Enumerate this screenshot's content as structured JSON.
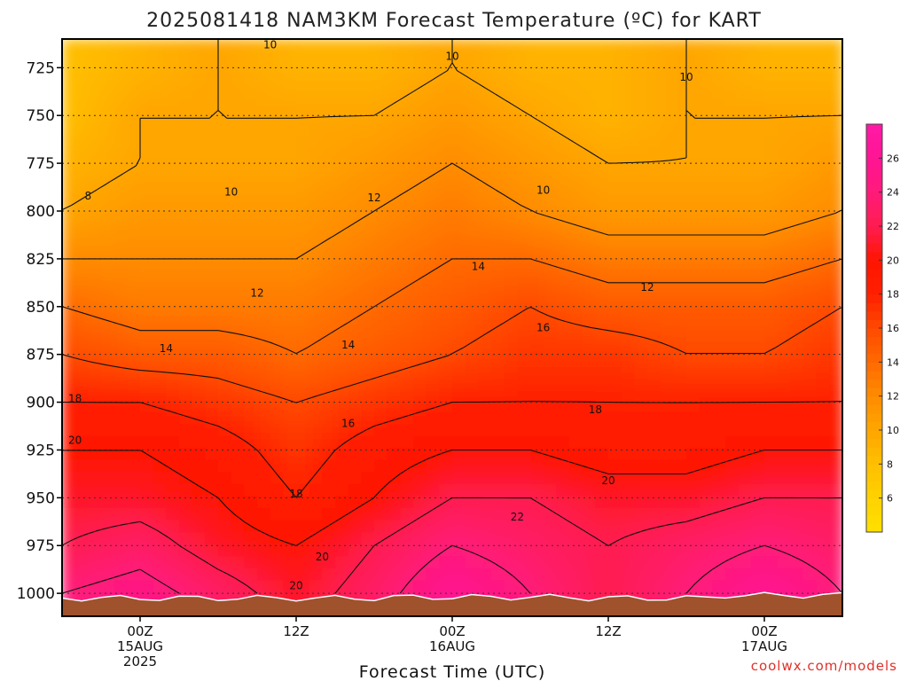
{
  "chart_data": {
    "type": "heatmap",
    "title": "2025081418 NAM3KM Forecast Temperature (ºC) for KART",
    "xlabel": "Forecast Time (UTC)",
    "ylabel": "",
    "y_axis": "pressure (hPa), inverted",
    "ylim": [
      1012,
      710
    ],
    "y_ticks": [
      725,
      750,
      775,
      800,
      825,
      850,
      875,
      900,
      925,
      950,
      975,
      1000
    ],
    "x_ticks": [
      {
        "line1": "00Z",
        "line2": "15AUG",
        "line3": "2025"
      },
      {
        "line1": "12Z",
        "line2": "",
        "line3": ""
      },
      {
        "line1": "00Z",
        "line2": "16AUG",
        "line3": ""
      },
      {
        "line1": "12Z",
        "line2": "",
        "line3": ""
      },
      {
        "line1": "00Z",
        "line2": "17AUG",
        "line3": ""
      }
    ],
    "x_hours": [
      6,
      18,
      30,
      42,
      54
    ],
    "xlim": [
      0,
      60
    ],
    "levels": [
      1000,
      975,
      950,
      925,
      900,
      875,
      850,
      825,
      800,
      775,
      750,
      725
    ],
    "times": [
      0,
      6,
      12,
      18,
      24,
      30,
      36,
      42,
      48,
      54,
      60
    ],
    "values": [
      [
        24,
        25,
        23,
        21,
        23,
        26,
        24,
        22,
        24,
        26,
        24
      ],
      [
        22,
        23,
        21,
        20,
        22,
        24,
        23,
        22,
        23,
        24,
        23
      ],
      [
        21,
        21,
        20,
        18,
        20,
        22,
        22,
        21,
        21,
        22,
        22
      ],
      [
        20,
        20,
        19,
        17,
        19,
        20,
        20,
        19,
        19,
        20,
        20
      ],
      [
        18,
        18,
        17,
        16,
        17,
        18,
        18,
        18,
        18,
        18,
        18
      ],
      [
        16,
        15,
        15,
        14,
        15,
        16,
        17,
        17,
        16,
        16,
        17
      ],
      [
        14,
        13,
        13,
        13,
        14,
        15,
        16,
        15,
        15,
        15,
        16
      ],
      [
        12,
        12,
        12,
        12,
        13,
        14,
        14,
        13,
        13,
        13,
        14
      ],
      [
        10,
        11,
        11,
        11,
        12,
        13,
        12,
        11,
        11,
        11,
        12
      ],
      [
        9,
        10,
        10,
        10,
        11,
        12,
        11,
        10,
        10,
        10,
        11
      ],
      [
        8,
        10,
        10,
        10,
        10,
        11,
        10,
        9,
        10,
        10,
        10
      ],
      [
        8,
        9,
        10,
        9,
        9,
        10,
        9,
        9,
        10,
        9,
        9
      ]
    ],
    "contour_labels": [
      {
        "text": "10",
        "t": 16,
        "p": 713
      },
      {
        "text": "10",
        "t": 30,
        "p": 719
      },
      {
        "text": "10",
        "t": 48,
        "p": 730
      },
      {
        "text": "10",
        "t": 13,
        "p": 790
      },
      {
        "text": "10",
        "t": 37,
        "p": 789
      },
      {
        "text": "8",
        "t": 2,
        "p": 792
      },
      {
        "text": "12",
        "t": 24,
        "p": 793
      },
      {
        "text": "12",
        "t": 15,
        "p": 843
      },
      {
        "text": "12",
        "t": 45,
        "p": 840
      },
      {
        "text": "14",
        "t": 32,
        "p": 829
      },
      {
        "text": "14",
        "t": 8,
        "p": 872
      },
      {
        "text": "14",
        "t": 22,
        "p": 870
      },
      {
        "text": "16",
        "t": 37,
        "p": 861
      },
      {
        "text": "16",
        "t": 22,
        "p": 911
      },
      {
        "text": "18",
        "t": 1,
        "p": 898
      },
      {
        "text": "18",
        "t": 41,
        "p": 904
      },
      {
        "text": "18",
        "t": 18,
        "p": 948
      },
      {
        "text": "20",
        "t": 1,
        "p": 920
      },
      {
        "text": "20",
        "t": 42,
        "p": 941
      },
      {
        "text": "20",
        "t": 20,
        "p": 981
      },
      {
        "text": "20",
        "t": 18,
        "p": 996
      },
      {
        "text": "22",
        "t": 35,
        "p": 960
      }
    ],
    "colorbar": {
      "ticks": [
        6,
        8,
        10,
        12,
        14,
        16,
        18,
        20,
        22,
        24,
        26
      ],
      "range": [
        4,
        28
      ],
      "stops": [
        {
          "v": 4,
          "color": "#ffe000"
        },
        {
          "v": 6,
          "color": "#ffd200"
        },
        {
          "v": 8,
          "color": "#ffbf00"
        },
        {
          "v": 10,
          "color": "#ffa600"
        },
        {
          "v": 12,
          "color": "#ff8c00"
        },
        {
          "v": 14,
          "color": "#ff6a00"
        },
        {
          "v": 16,
          "color": "#ff4a00"
        },
        {
          "v": 18,
          "color": "#ff2000"
        },
        {
          "v": 20,
          "color": "#ff1500"
        },
        {
          "v": 22,
          "color": "#ff1c50"
        },
        {
          "v": 24,
          "color": "#ff1b7a"
        },
        {
          "v": 26,
          "color": "#ff1493"
        },
        {
          "v": 28,
          "color": "#ff1aa6"
        }
      ]
    },
    "ground_color": "#a0522d",
    "grid": true,
    "grid_style": "dotted horizontal at pressure ticks"
  },
  "credit": "coolwx.com/models"
}
